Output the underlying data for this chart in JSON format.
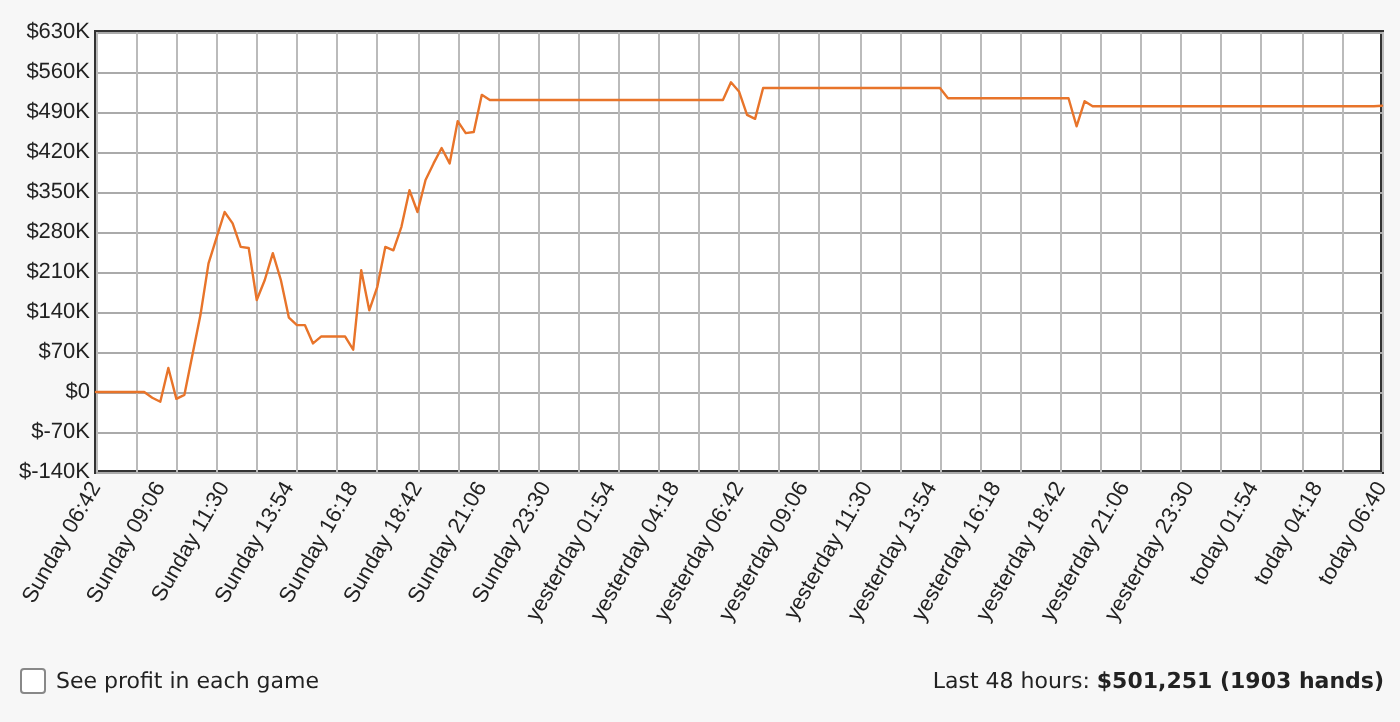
{
  "chart_data": {
    "type": "line",
    "categories": [
      "Sunday 06:42",
      null,
      null,
      null,
      null,
      null,
      null,
      null,
      "Sunday 09:06",
      null,
      null,
      null,
      null,
      null,
      null,
      null,
      "Sunday 11:30",
      null,
      null,
      null,
      null,
      null,
      null,
      null,
      "Sunday 13:54",
      null,
      null,
      null,
      null,
      null,
      null,
      null,
      "Sunday 16:18",
      null,
      null,
      null,
      null,
      null,
      null,
      null,
      "Sunday 18:42",
      null,
      null,
      null,
      null,
      null,
      null,
      null,
      "Sunday 21:06",
      null,
      null,
      null,
      null,
      null,
      null,
      null,
      "Sunday 23:30",
      null,
      null,
      null,
      null,
      null,
      null,
      null,
      "yesterday 01:54",
      null,
      null,
      null,
      null,
      null,
      null,
      null,
      "yesterday 04:18",
      null,
      null,
      null,
      null,
      null,
      null,
      null,
      "yesterday 06:42",
      null,
      null,
      null,
      null,
      null,
      null,
      null,
      "yesterday 09:06",
      null,
      null,
      null,
      null,
      null,
      null,
      null,
      "yesterday 11:30",
      null,
      null,
      null,
      null,
      null,
      null,
      null,
      "yesterday 13:54",
      null,
      null,
      null,
      null,
      null,
      null,
      null,
      "yesterday 16:18",
      null,
      null,
      null,
      null,
      null,
      null,
      null,
      "yesterday 18:42",
      null,
      null,
      null,
      null,
      null,
      null,
      null,
      "yesterday 21:06",
      null,
      null,
      null,
      null,
      null,
      null,
      null,
      "yesterday 23:30",
      null,
      null,
      null,
      null,
      null,
      null,
      null,
      "today 01:54",
      null,
      null,
      null,
      null,
      null,
      null,
      null,
      "today 04:18",
      null,
      null,
      null,
      null,
      null,
      null,
      null,
      "today 06:40"
    ],
    "series": [
      {
        "color": "#e8742a",
        "values": [
          0,
          0,
          0,
          0,
          0,
          0,
          0,
          -10,
          -17,
          42,
          -12,
          -5,
          65,
          135,
          225,
          270,
          315,
          295,
          254,
          252,
          161,
          196,
          243,
          196,
          130,
          117,
          117,
          85,
          97,
          97,
          97,
          97,
          74,
          213,
          143,
          184,
          254,
          248,
          289,
          353,
          315,
          371,
          400,
          427,
          400,
          474,
          453,
          455,
          520,
          511,
          511,
          511,
          511,
          511,
          511,
          511,
          511,
          511,
          511,
          511,
          511,
          511,
          511,
          511,
          511,
          511,
          511,
          511,
          511,
          511,
          511,
          511,
          511,
          511,
          511,
          511,
          511,
          511,
          511,
          542,
          526,
          485,
          478,
          532,
          532,
          532,
          532,
          532,
          532,
          532,
          532,
          532,
          532,
          532,
          532,
          532,
          532,
          532,
          532,
          532,
          532,
          532,
          532,
          532,
          532,
          532,
          514,
          514,
          514,
          514,
          514,
          514,
          514,
          514,
          514,
          514,
          514,
          514,
          514,
          514,
          514,
          514,
          465,
          509,
          500,
          500,
          500,
          500,
          500,
          500,
          500,
          500,
          500,
          500,
          500,
          500,
          500,
          500,
          500,
          500,
          500,
          500,
          500,
          500,
          500,
          500,
          500,
          500,
          500,
          500,
          500,
          500,
          500,
          500,
          500,
          500,
          500,
          500,
          500,
          500,
          501
        ]
      }
    ],
    "ylim": [
      -140,
      630
    ],
    "yticks": [
      {
        "value": -140,
        "label": "$-140K"
      },
      {
        "value": -70,
        "label": "$-70K"
      },
      {
        "value": 0,
        "label": "$0"
      },
      {
        "value": 70,
        "label": "$70K"
      },
      {
        "value": 140,
        "label": "$140K"
      },
      {
        "value": 210,
        "label": "$210K"
      },
      {
        "value": 280,
        "label": "$280K"
      },
      {
        "value": 350,
        "label": "$350K"
      },
      {
        "value": 420,
        "label": "$420K"
      },
      {
        "value": 490,
        "label": "$490K"
      },
      {
        "value": 560,
        "label": "$560K"
      },
      {
        "value": 630,
        "label": "$630K"
      }
    ],
    "grid": true,
    "marker": "none",
    "line_style": "solid",
    "annotations": [
      "See profit in each game",
      "Last 48 hours:",
      "$501,251 (1903 hands)"
    ]
  }
}
